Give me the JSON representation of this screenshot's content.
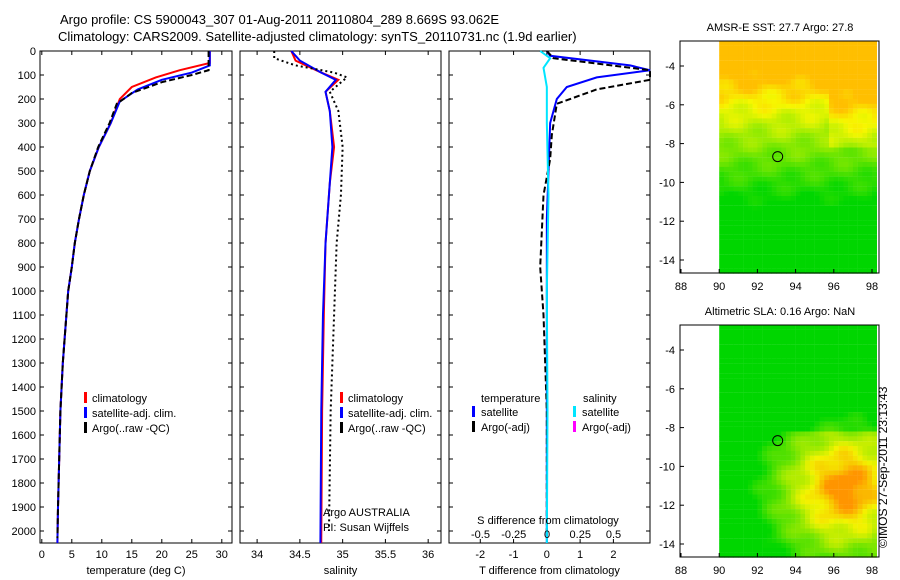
{
  "title_line1": "Argo profile: CS 5900043_307 01-Aug-2011 20110804_289 8.669S 93.062E",
  "title_line2": "Climatology: CARS2009. Satellite-adjusted climatology: synTS_20110731.nc (1.9d earlier)",
  "watermark": "©IMOS 27-Sep-2011 23:13:43",
  "colors": {
    "climatology": "#ff0000",
    "satellite": "#0000ff",
    "argo": "#000000",
    "sal_sat": "#00e5ff",
    "sal_argo": "#ff00ff"
  },
  "chart_data": [
    {
      "type": "line",
      "name": "temperature",
      "xlabel": "temperature (deg C)",
      "xlim": [
        -0.3,
        31.7
      ],
      "ylim": [
        0,
        2050
      ],
      "xticks": [
        0,
        5,
        10,
        15,
        20,
        25,
        30
      ],
      "yticks": [
        0,
        100,
        200,
        300,
        400,
        500,
        600,
        700,
        800,
        900,
        1000,
        1100,
        1200,
        1300,
        1400,
        1500,
        1600,
        1700,
        1800,
        1900,
        2000
      ],
      "legend": [
        "climatology",
        "satellite-adj. clim.",
        "Argo(..raw -QC)"
      ],
      "series": [
        {
          "name": "climatology",
          "color": "#ff0000",
          "dash": "",
          "points": [
            [
              28,
              0
            ],
            [
              28,
              50
            ],
            [
              23,
              80
            ],
            [
              19,
              110
            ],
            [
              15,
              150
            ],
            [
              13,
              200
            ],
            [
              11.5,
              300
            ],
            [
              9.5,
              400
            ],
            [
              8,
              500
            ],
            [
              7,
              600
            ],
            [
              6.2,
              700
            ],
            [
              5.5,
              800
            ],
            [
              5,
              900
            ],
            [
              4.4,
              1000
            ],
            [
              4.1,
              1100
            ],
            [
              3.8,
              1200
            ],
            [
              3.5,
              1300
            ],
            [
              3.3,
              1400
            ],
            [
              3.1,
              1500
            ],
            [
              3,
              1600
            ],
            [
              2.9,
              1700
            ],
            [
              2.8,
              1800
            ],
            [
              2.7,
              1900
            ],
            [
              2.6,
              2050
            ]
          ]
        },
        {
          "name": "satellite-adj. clim.",
          "color": "#0000ff",
          "dash": "",
          "points": [
            [
              28,
              0
            ],
            [
              28,
              60
            ],
            [
              25,
              90
            ],
            [
              20,
              120
            ],
            [
              16,
              160
            ],
            [
              13,
              210
            ],
            [
              11.5,
              300
            ],
            [
              9.5,
              400
            ],
            [
              8,
              500
            ],
            [
              7,
              600
            ],
            [
              6.2,
              700
            ],
            [
              5.5,
              800
            ],
            [
              5,
              900
            ],
            [
              4.4,
              1000
            ],
            [
              4.1,
              1100
            ],
            [
              3.8,
              1200
            ],
            [
              3.5,
              1300
            ],
            [
              3.3,
              1400
            ],
            [
              3.1,
              1500
            ],
            [
              3,
              1600
            ],
            [
              2.9,
              1700
            ],
            [
              2.8,
              1800
            ],
            [
              2.7,
              1900
            ],
            [
              2.6,
              2050
            ]
          ]
        },
        {
          "name": "Argo(..raw -QC)",
          "color": "#000000",
          "dash": "6,3",
          "points": [
            [
              27.8,
              0
            ],
            [
              27.8,
              80
            ],
            [
              25,
              100
            ],
            [
              20,
              130
            ],
            [
              15,
              175
            ],
            [
              12.5,
              220
            ],
            [
              11.3,
              300
            ],
            [
              9.4,
              400
            ],
            [
              8,
              500
            ],
            [
              7,
              600
            ],
            [
              6.2,
              700
            ],
            [
              5.5,
              800
            ],
            [
              5,
              900
            ],
            [
              4.4,
              1000
            ],
            [
              4.1,
              1100
            ],
            [
              3.8,
              1200
            ],
            [
              3.5,
              1300
            ],
            [
              3.3,
              1400
            ],
            [
              3.1,
              1500
            ],
            [
              3,
              1600
            ],
            [
              2.9,
              1700
            ],
            [
              2.8,
              1800
            ],
            [
              2.7,
              1900
            ],
            [
              2.6,
              2030
            ]
          ]
        }
      ]
    },
    {
      "type": "line",
      "name": "salinity",
      "xlabel": "salinity",
      "xlim": [
        33.8,
        36.15
      ],
      "ylim": [
        0,
        2050
      ],
      "xticks": [
        34,
        34.5,
        35,
        35.5,
        36
      ],
      "legend": [
        "climatology",
        "satellite-adj. clim.",
        "Argo(..raw -QC)"
      ],
      "annotation": [
        "Argo AUSTRALIA",
        "PI: Susan Wijffels"
      ],
      "series": [
        {
          "name": "climatology",
          "color": "#ff0000",
          "dash": "",
          "points": [
            [
              34.4,
              0
            ],
            [
              34.45,
              40
            ],
            [
              34.75,
              90
            ],
            [
              34.95,
              120
            ],
            [
              34.8,
              170
            ],
            [
              34.85,
              250
            ],
            [
              34.9,
              400
            ],
            [
              34.85,
              550
            ],
            [
              34.8,
              800
            ],
            [
              34.78,
              1100
            ],
            [
              34.76,
              1500
            ],
            [
              34.75,
              2050
            ]
          ]
        },
        {
          "name": "satellite-adj. clim.",
          "color": "#0000ff",
          "dash": "",
          "points": [
            [
              34.4,
              0
            ],
            [
              34.5,
              40
            ],
            [
              34.75,
              90
            ],
            [
              34.92,
              120
            ],
            [
              34.8,
              170
            ],
            [
              34.85,
              250
            ],
            [
              34.88,
              400
            ],
            [
              34.85,
              550
            ],
            [
              34.8,
              800
            ],
            [
              34.77,
              1100
            ],
            [
              34.75,
              1500
            ],
            [
              34.74,
              2050
            ]
          ]
        },
        {
          "name": "Argo(..raw -QC)",
          "color": "#000000",
          "dash": "2,3",
          "points": [
            [
              34.2,
              0
            ],
            [
              34.2,
              30
            ],
            [
              34.45,
              60
            ],
            [
              34.9,
              90
            ],
            [
              35.05,
              110
            ],
            [
              34.85,
              170
            ],
            [
              34.95,
              250
            ],
            [
              35.0,
              400
            ],
            [
              34.98,
              600
            ],
            [
              34.93,
              800
            ],
            [
              34.9,
              1100
            ],
            [
              34.86,
              1500
            ],
            [
              34.84,
              2000
            ]
          ]
        }
      ]
    },
    {
      "type": "line",
      "name": "difference",
      "xlabel": "T difference from climatology",
      "x2label": "S difference from climatology",
      "xlim": [
        -2.94,
        3.1
      ],
      "ylim": [
        0,
        2050
      ],
      "xticks": [
        -2,
        -1,
        0,
        1,
        2
      ],
      "x2ticks": [
        "-0.5",
        "-0.25",
        "0",
        "0.25",
        "0.5"
      ],
      "legend_t": {
        "title": "temperature",
        "items": [
          "satellite",
          "Argo(-adj)"
        ]
      },
      "legend_s": {
        "title": "salinity",
        "items": [
          "satellite",
          "Argo(-adj)"
        ]
      },
      "series": [
        {
          "name": "T satellite",
          "color": "#0000ff",
          "dash": "",
          "points": [
            [
              0,
              0
            ],
            [
              0.1,
              20
            ],
            [
              2.5,
              60
            ],
            [
              3.1,
              80
            ],
            [
              1.5,
              110
            ],
            [
              0.6,
              150
            ],
            [
              0.3,
              200
            ],
            [
              0.1,
              300
            ],
            [
              0.05,
              500
            ],
            [
              0,
              700
            ],
            [
              0,
              1000
            ],
            [
              0,
              2050
            ]
          ]
        },
        {
          "name": "T Argo(-adj)",
          "color": "#000000",
          "dash": "6,3",
          "points": [
            [
              0,
              0
            ],
            [
              0.2,
              30
            ],
            [
              3.1,
              80
            ],
            [
              3.1,
              120
            ],
            [
              1.5,
              160
            ],
            [
              0.3,
              220
            ],
            [
              0.15,
              350
            ],
            [
              0.1,
              450
            ],
            [
              -0.1,
              600
            ],
            [
              -0.2,
              900
            ],
            [
              -0.1,
              1100
            ],
            [
              0,
              1500
            ],
            [
              0,
              2000
            ]
          ]
        },
        {
          "name": "S satellite",
          "color": "#00e5ff",
          "dash": "",
          "points": [
            [
              -0.2,
              0
            ],
            [
              0.1,
              30
            ],
            [
              -0.1,
              70
            ],
            [
              0,
              150
            ],
            [
              0,
              300
            ],
            [
              0.05,
              600
            ],
            [
              0,
              1000
            ],
            [
              0.02,
              1500
            ],
            [
              0,
              2050
            ]
          ]
        }
      ]
    }
  ],
  "maps": [
    {
      "title": "AMSR-E SST: 27.7 Argo: 27.8",
      "palette": "sst",
      "xticks": [
        88,
        90,
        92,
        94,
        96,
        98
      ],
      "yticks": [
        -4,
        -6,
        -8,
        -10,
        -12,
        -14
      ],
      "argo_lon": 93.062,
      "argo_lat": -8.669
    },
    {
      "title": "Altimetric SLA: 0.16 Argo: NaN",
      "palette": "sla",
      "xticks": [
        88,
        90,
        92,
        94,
        96,
        98
      ],
      "yticks": [
        -4,
        -6,
        -8,
        -10,
        -12,
        -14
      ],
      "argo_lon": 93.062,
      "argo_lat": -8.669
    }
  ]
}
